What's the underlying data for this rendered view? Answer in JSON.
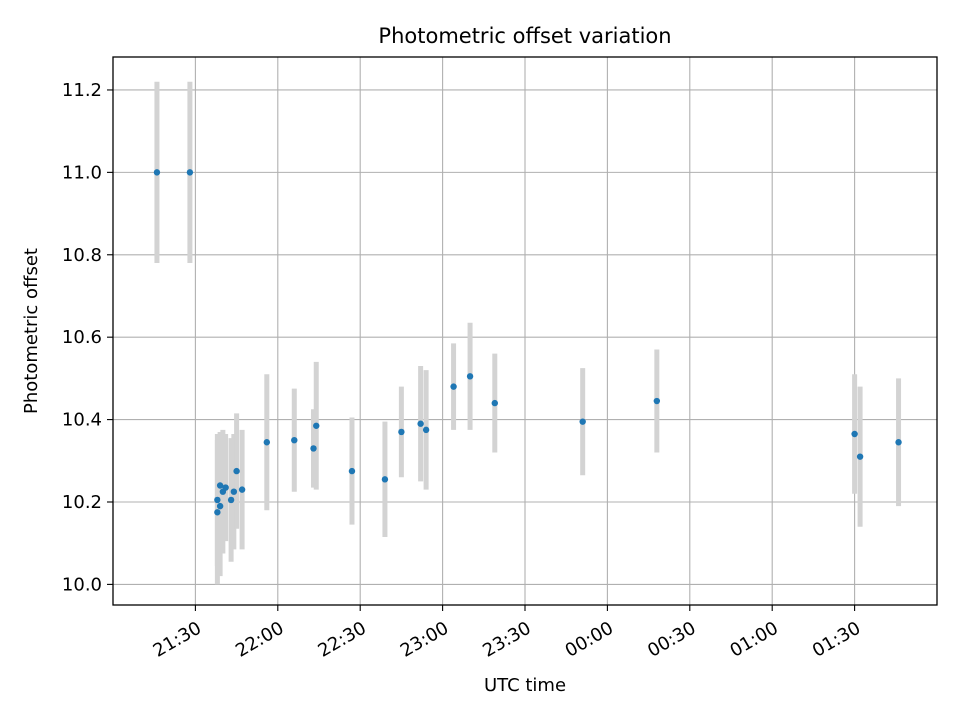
{
  "chart_data": {
    "type": "scatter",
    "title": "Photometric offset variation",
    "xlabel": "UTC time",
    "ylabel": "Photometric offset",
    "x_axis": {
      "kind": "time",
      "min": "21:00",
      "max": "02:00",
      "ticks": [
        "21:30",
        "22:00",
        "22:30",
        "23:00",
        "23:30",
        "00:00",
        "00:30",
        "01:00",
        "01:30"
      ]
    },
    "y_axis": {
      "min": 9.95,
      "max": 11.28,
      "ticks": [
        "10.0",
        "10.2",
        "10.4",
        "10.6",
        "10.8",
        "11.0",
        "11.2"
      ]
    },
    "grid": true,
    "colors": {
      "point": "#1f77b4",
      "errorbar": "#d3d3d3",
      "grid": "#b0b0b0"
    },
    "series": [
      {
        "points": [
          {
            "t": "21:16",
            "y": 11.0,
            "err": 0.22
          },
          {
            "t": "21:28",
            "y": 11.0,
            "err": 0.22
          },
          {
            "t": "21:38",
            "y": 10.175,
            "err": 0.175
          },
          {
            "t": "21:38",
            "y": 10.205,
            "err": 0.16
          },
          {
            "t": "21:39",
            "y": 10.19,
            "err": 0.17
          },
          {
            "t": "21:39",
            "y": 10.24,
            "err": 0.13
          },
          {
            "t": "21:40",
            "y": 10.225,
            "err": 0.15
          },
          {
            "t": "21:41",
            "y": 10.235,
            "err": 0.13
          },
          {
            "t": "21:43",
            "y": 10.205,
            "err": 0.15
          },
          {
            "t": "21:44",
            "y": 10.225,
            "err": 0.14
          },
          {
            "t": "21:45",
            "y": 10.275,
            "err": 0.14
          },
          {
            "t": "21:47",
            "y": 10.23,
            "err": 0.145
          },
          {
            "t": "21:56",
            "y": 10.345,
            "err": 0.165
          },
          {
            "t": "22:06",
            "y": 10.35,
            "err": 0.125
          },
          {
            "t": "22:13",
            "y": 10.33,
            "err": 0.095
          },
          {
            "t": "22:14",
            "y": 10.385,
            "err": 0.155
          },
          {
            "t": "22:27",
            "y": 10.275,
            "err": 0.13
          },
          {
            "t": "22:39",
            "y": 10.255,
            "err": 0.14
          },
          {
            "t": "22:45",
            "y": 10.37,
            "err": 0.11
          },
          {
            "t": "22:52",
            "y": 10.39,
            "err": 0.14
          },
          {
            "t": "22:54",
            "y": 10.375,
            "err": 0.145
          },
          {
            "t": "23:04",
            "y": 10.48,
            "err": 0.105
          },
          {
            "t": "23:10",
            "y": 10.505,
            "err": 0.13
          },
          {
            "t": "23:19",
            "y": 10.44,
            "err": 0.12
          },
          {
            "t": "23:51",
            "y": 10.395,
            "err": 0.13
          },
          {
            "t": "00:18",
            "y": 10.445,
            "err": 0.125
          },
          {
            "t": "01:30",
            "y": 10.365,
            "err": 0.145
          },
          {
            "t": "01:32",
            "y": 10.31,
            "err": 0.17
          },
          {
            "t": "01:46",
            "y": 10.345,
            "err": 0.155
          }
        ]
      }
    ]
  }
}
